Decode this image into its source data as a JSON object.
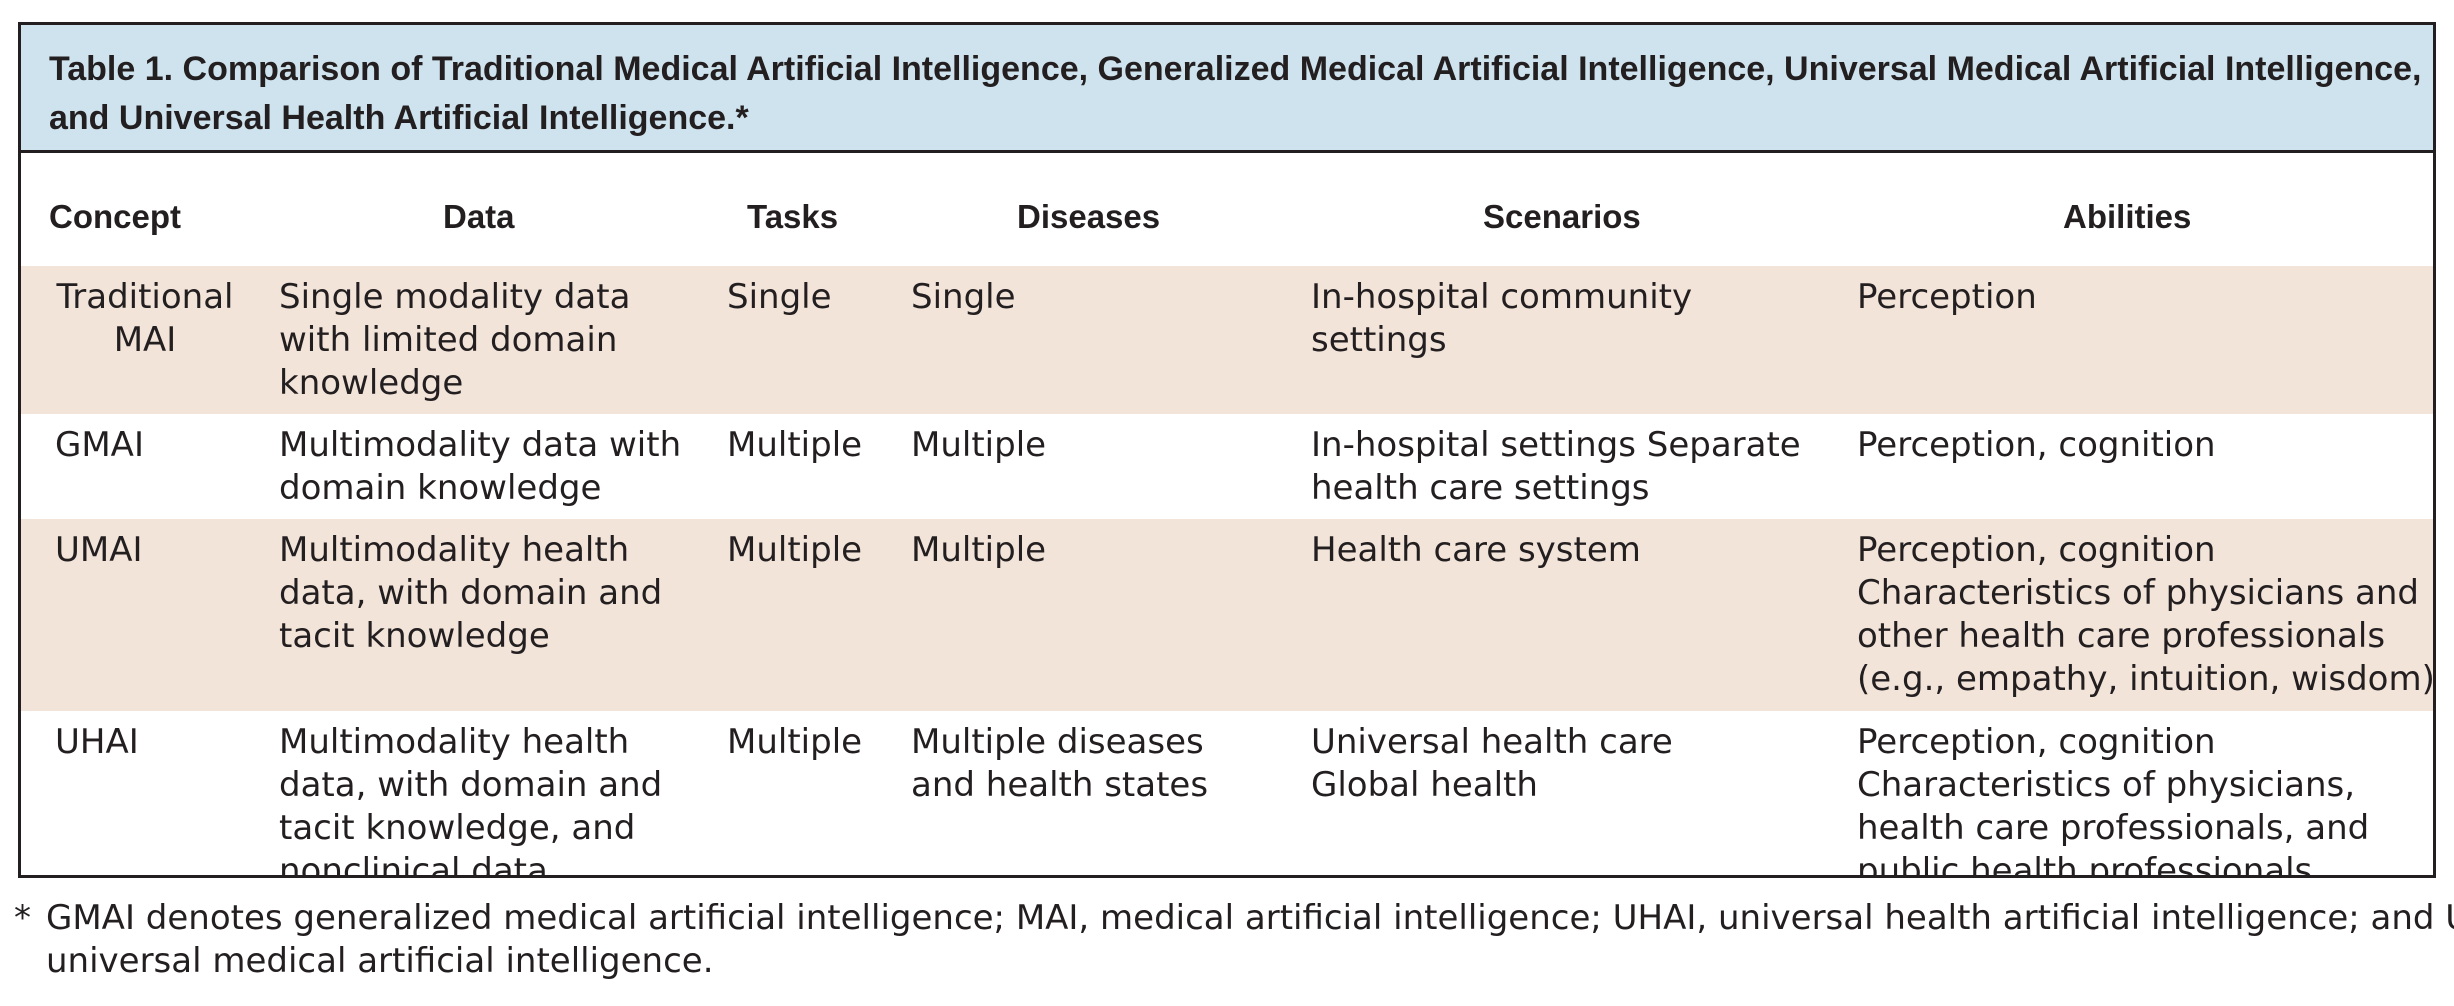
{
  "table": {
    "caption_lines": [
      "Table 1. Comparison of Traditional Medical Artificial Intelligence, Generalized Medical Artificial Intelligence, Universal Medical Artificial Intelligence,",
      "and Universal Health Artificial Intelligence.*"
    ],
    "headers": {
      "concept": "Concept",
      "data": "Data",
      "tasks": "Tasks",
      "diseases": "Diseases",
      "scenarios": "Scenarios",
      "abilities": "Abilities"
    },
    "rows": [
      {
        "concept": [
          "Traditional",
          "MAI"
        ],
        "data": [
          "Single modality data",
          "with limited domain",
          "knowledge"
        ],
        "tasks": [
          "Single"
        ],
        "diseases": [
          "Single"
        ],
        "scenarios": [
          "In-hospital community",
          "settings"
        ],
        "abilities": [
          "Perception"
        ]
      },
      {
        "concept": [
          "GMAI"
        ],
        "data": [
          "Multimodality data with",
          "domain knowledge"
        ],
        "tasks": [
          "Multiple"
        ],
        "diseases": [
          "Multiple"
        ],
        "scenarios": [
          "In-hospital settings Separate",
          "health care settings"
        ],
        "abilities": [
          "Perception, cognition"
        ]
      },
      {
        "concept": [
          "UMAI"
        ],
        "data": [
          "Multimodality health",
          "data, with domain and",
          "tacit knowledge"
        ],
        "tasks": [
          "Multiple"
        ],
        "diseases": [
          "Multiple"
        ],
        "scenarios": [
          "Health care system"
        ],
        "abilities": [
          "Perception, cognition",
          "Characteristics of physicians and",
          "other health care professionals",
          "(e.g., empathy, intuition, wisdom)"
        ]
      },
      {
        "concept": [
          "UHAI"
        ],
        "data": [
          "Multimodality health",
          "data, with domain and",
          "tacit knowledge, and",
          "nonclinical data"
        ],
        "tasks": [
          "Multiple"
        ],
        "diseases": [
          "Multiple diseases",
          "and health states"
        ],
        "scenarios": [
          "Universal health care",
          "Global health"
        ],
        "abilities": [
          "Perception, cognition",
          "Characteristics of physicians,",
          "health care professionals, and",
          "public health professionals"
        ]
      }
    ]
  },
  "footnote": {
    "marker": "*",
    "lines": [
      "GMAI denotes generalized medical artificial intelligence; MAI, medical artificial intelligence; UHAI, universal health artificial intelligence; and UMAI,",
      "universal medical artificial intelligence."
    ]
  },
  "colors": {
    "caption_bg": "#cfe3ee",
    "shaded_row_bg": "#f3e4da",
    "border": "#231f20"
  }
}
